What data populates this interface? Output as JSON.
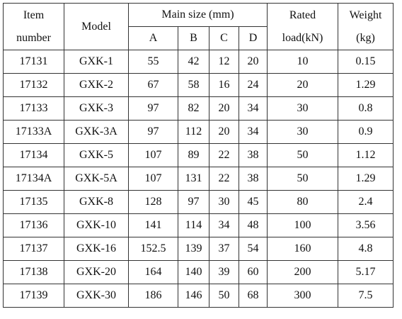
{
  "table": {
    "header": {
      "item_number": "Item number",
      "model": "Model",
      "main_size": "Main size (mm)",
      "sub": [
        "A",
        "B",
        "C",
        "D"
      ],
      "rated_load": "Rated load(kN)",
      "weight": "Weight (kg)"
    },
    "rows": [
      [
        "17131",
        "GXK-1",
        "55",
        "42",
        "12",
        "20",
        "10",
        "0.15"
      ],
      [
        "17132",
        "GXK-2",
        "67",
        "58",
        "16",
        "24",
        "20",
        "1.29"
      ],
      [
        "17133",
        "GXK-3",
        "97",
        "82",
        "20",
        "34",
        "30",
        "0.8"
      ],
      [
        "17133A",
        "GXK-3A",
        "97",
        "112",
        "20",
        "34",
        "30",
        "0.9"
      ],
      [
        "17134",
        "GXK-5",
        "107",
        "89",
        "22",
        "38",
        "50",
        "1.12"
      ],
      [
        "17134A",
        "GXK-5A",
        "107",
        "131",
        "22",
        "38",
        "50",
        "1.29"
      ],
      [
        "17135",
        "GXK-8",
        "128",
        "97",
        "30",
        "45",
        "80",
        "2.4"
      ],
      [
        "17136",
        "GXK-10",
        "141",
        "114",
        "34",
        "48",
        "100",
        "3.56"
      ],
      [
        "17137",
        "GXK-16",
        "152.5",
        "139",
        "37",
        "54",
        "160",
        "4.8"
      ],
      [
        "17138",
        "GXK-20",
        "164",
        "140",
        "39",
        "60",
        "200",
        "5.17"
      ],
      [
        "17139",
        "GXK-30",
        "186",
        "146",
        "50",
        "68",
        "300",
        "7.5"
      ]
    ]
  }
}
